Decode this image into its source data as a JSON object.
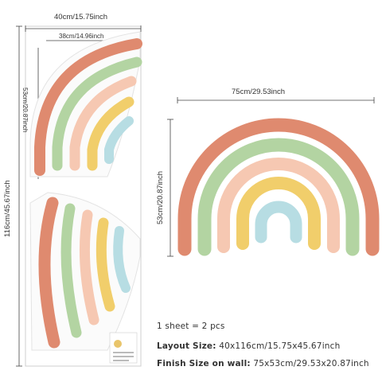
{
  "dimensions": {
    "sheet_width": "40cm/15.75inch",
    "sheet_inner_width": "38cm/14.96inch",
    "sheet_height": "116cm/45.67inch",
    "sheet_arc_height": "53cm/20.87inch",
    "rainbow_width": "75cm/29.53inch",
    "rainbow_height": "53cm/20.87inch"
  },
  "info": {
    "sheet_count": "1 sheet = 2 pcs",
    "layout_label": "Layout Size:",
    "layout_value": "40x116cm/15.75x45.67inch",
    "finish_label": "Finish Size on wall:",
    "finish_value": "75x53cm/29.53x20.87inch"
  },
  "colors": {
    "terracotta": "#df8a6f",
    "sage": "#b3d4a2",
    "peach": "#f6c8b2",
    "mustard": "#f1ce6b",
    "sky": "#b7dde3"
  }
}
